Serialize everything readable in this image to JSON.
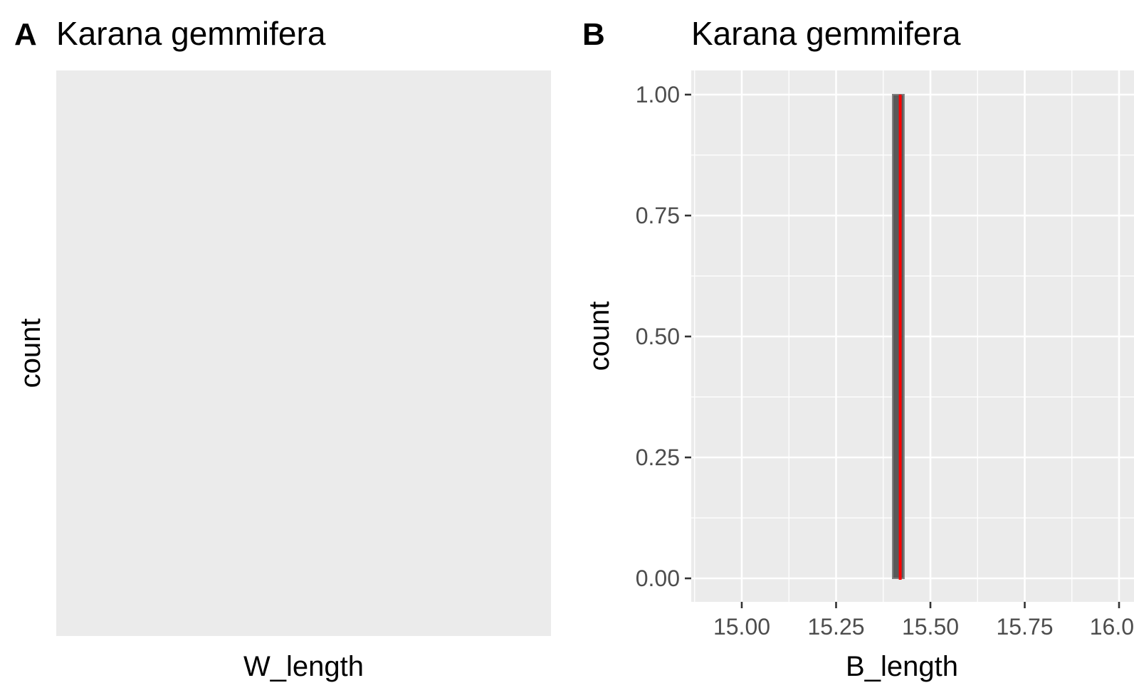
{
  "chart_data": [
    {
      "type": "bar",
      "panel_tag": "A",
      "title": "Karana gemmifera",
      "xlabel": "W_length",
      "ylabel": "count",
      "x": [],
      "values": [],
      "grid": false,
      "colors": {
        "panel_background": "#ebebeb"
      }
    },
    {
      "type": "bar",
      "panel_tag": "B",
      "title": "Karana gemmifera",
      "xlabel": "B_length",
      "ylabel": "count",
      "xlim": [
        14.875,
        16.0
      ],
      "ylim": [
        -0.05,
        1.05
      ],
      "x_ticks": [
        15.0,
        15.25,
        15.5,
        15.75,
        16.0
      ],
      "x_tick_labels": [
        "15.00",
        "15.25",
        "15.50",
        "15.75",
        "16.0"
      ],
      "y_ticks": [
        0.0,
        0.25,
        0.5,
        0.75,
        1.0
      ],
      "y_tick_labels": [
        "0.00",
        "0.25",
        "0.50",
        "0.75",
        "1.00"
      ],
      "bars": [
        {
          "x_start": 15.4,
          "x_end": 15.43,
          "count": 1
        }
      ],
      "reference_line": {
        "x": 15.42
      },
      "grid": true,
      "colors": {
        "panel_background": "#ebebeb",
        "grid": "#ffffff",
        "bar_fill": "#595959",
        "bar_outline": "#808080",
        "reference_line": "#ff0000"
      }
    }
  ]
}
